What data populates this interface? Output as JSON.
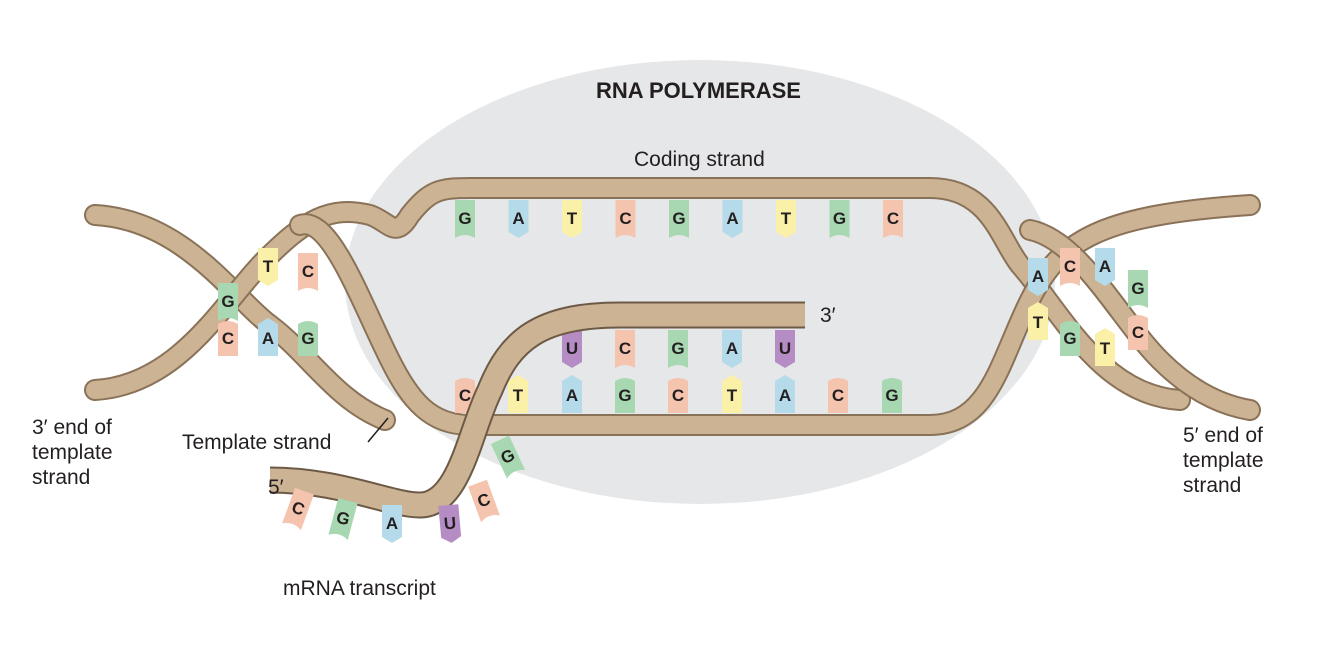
{
  "labels": {
    "enzyme": "RNA POLYMERASE",
    "coding_strand": "Coding strand",
    "template_strand": "Template strand",
    "three_prime_end": "3′ end of\ntemplate\nstrand",
    "five_prime_end": "5′ end of\ntemplate\nstrand",
    "mrna": "mRNA transcript",
    "mrna_3prime": "3′",
    "mrna_5prime": "5′"
  },
  "colors": {
    "backbone": "#cbb394",
    "backbone_edge": "#8a7258",
    "enzyme": "#e6e7e8",
    "G": "#a8d8b2",
    "A": "#b5dbea",
    "T": "#fbf0a8",
    "C": "#f5c4ae",
    "U": "#b58dc4"
  },
  "bases": {
    "coding": [
      "G",
      "A",
      "T",
      "C",
      "G",
      "A",
      "T",
      "G",
      "C"
    ],
    "template": [
      "C",
      "T",
      "A",
      "G",
      "C",
      "T",
      "A",
      "C",
      "G"
    ],
    "mrna_paired": [
      "U",
      "C",
      "G",
      "A",
      "U"
    ],
    "mrna_tail": [
      "C",
      "G",
      "A",
      "U",
      "C",
      "G"
    ],
    "left_helix": [
      "G",
      "T",
      "C",
      "C",
      "A",
      "G"
    ],
    "right_helix": [
      "A",
      "C",
      "A",
      "G",
      "T",
      "G",
      "T",
      "C"
    ]
  }
}
